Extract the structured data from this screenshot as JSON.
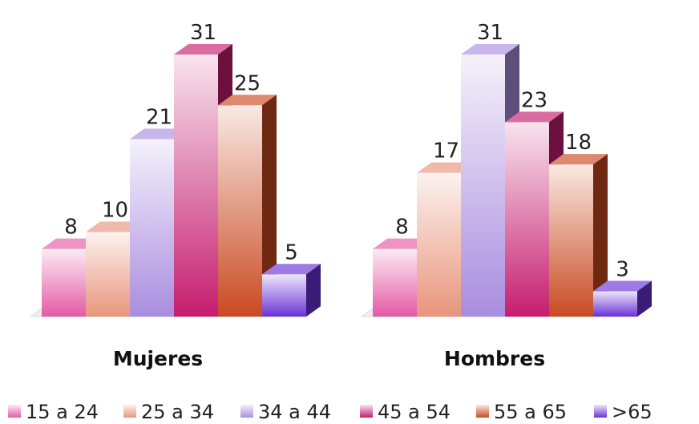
{
  "chart_data": {
    "type": "bar",
    "categories": [
      "Mujeres",
      "Hombres"
    ],
    "series": [
      {
        "name": "15 a 24",
        "values": [
          8,
          8
        ],
        "color": "#e35aa6"
      },
      {
        "name": "25 a 34",
        "values": [
          10,
          17
        ],
        "color": "#e8957c"
      },
      {
        "name": "34 a 44",
        "values": [
          21,
          31
        ],
        "color": "#a98de0"
      },
      {
        "name": "45 a 54",
        "values": [
          31,
          23
        ],
        "color": "#c51d6e"
      },
      {
        "name": "55 a 65",
        "values": [
          25,
          18
        ],
        "color": "#c94a22"
      },
      {
        "name": ">65",
        "values": [
          5,
          3
        ],
        "color": "#6a33d6"
      }
    ],
    "value_labels": true,
    "legend_position": "bottom",
    "grid": false,
    "style": "3d-columns"
  }
}
